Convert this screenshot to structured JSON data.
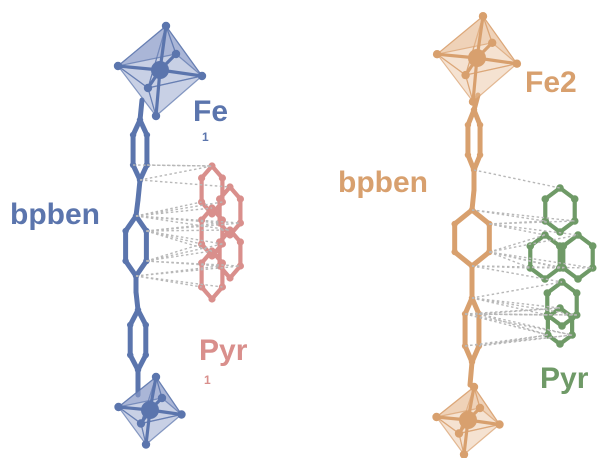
{
  "colors": {
    "blue": "#5b75ad",
    "blue_face": "#8597c6",
    "pink": "#d98f8c",
    "orange": "#d8a06e",
    "orange_face": "#e8bf98",
    "green": "#6f9a67",
    "contact": "#b8b8b8",
    "background": "#ffffff"
  },
  "left_panel": {
    "labels": {
      "metal": "Fe",
      "linker": "bpben",
      "guest": "Pyr",
      "metal_subscript": "1",
      "guest_subscript": "1"
    }
  },
  "right_panel": {
    "labels": {
      "metal": "Fe2",
      "linker": "bpben",
      "guest": "Pyr"
    }
  }
}
